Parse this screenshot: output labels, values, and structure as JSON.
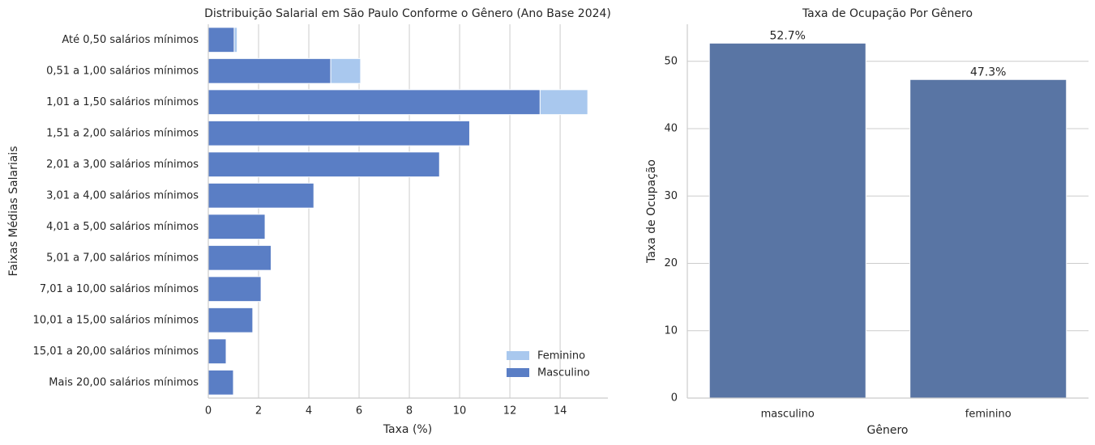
{
  "chart_data": [
    {
      "type": "bar",
      "orientation": "horizontal",
      "title": "Distribuição Salarial em São Paulo Conforme o Gênero (Ano Base 2024)",
      "xlabel": "Taxa (%)",
      "ylabel": "Faixas Médias Salariais",
      "categories": [
        "Até 0,50 salários mínimos",
        "0,51 a 1,00 salários mínimos",
        "1,01 a 1,50 salários mínimos",
        "1,51 a 2,00 salários mínimos",
        "2,01 a 3,00 salários mínimos",
        "3,01 a 4,00 salários mínimos",
        "4,01 a 5,00 salários mínimos",
        "5,01 a 7,00 salários mínimos",
        "7,01 a 10,00 salários mínimos",
        "10,01 a 15,00 salários mínimos",
        "15,01 a 20,00 salários mínimos",
        "Mais 20,00 salários mínimos"
      ],
      "series": [
        {
          "name": "Feminino",
          "color": "#a9c8ee",
          "values": [
            1.15,
            6.06,
            15.1,
            null,
            null,
            null,
            null,
            null,
            null,
            null,
            null,
            null
          ]
        },
        {
          "name": "Masculino",
          "color": "#5a7ec5",
          "values": [
            1.03,
            4.87,
            13.2,
            10.4,
            9.2,
            4.2,
            2.26,
            2.5,
            2.1,
            1.77,
            0.71,
            1.0
          ]
        }
      ],
      "xlim": [
        0,
        15.9
      ],
      "xticks": [
        0,
        2,
        4,
        6,
        8,
        10,
        12,
        14
      ],
      "grid": true,
      "legend": "lower right"
    },
    {
      "type": "bar",
      "orientation": "vertical",
      "title": "Taxa de Ocupação Por Gênero",
      "xlabel": "Gênero",
      "ylabel": "Taxa de Ocupação",
      "categories": [
        "masculino",
        "feminino"
      ],
      "values": [
        52.7,
        47.3
      ],
      "value_labels": [
        "52.7%",
        "47.3%"
      ],
      "color": "#5975a4",
      "ylim": [
        0,
        55.5
      ],
      "yticks": [
        0,
        10,
        20,
        30,
        40,
        50
      ],
      "grid": true
    }
  ]
}
